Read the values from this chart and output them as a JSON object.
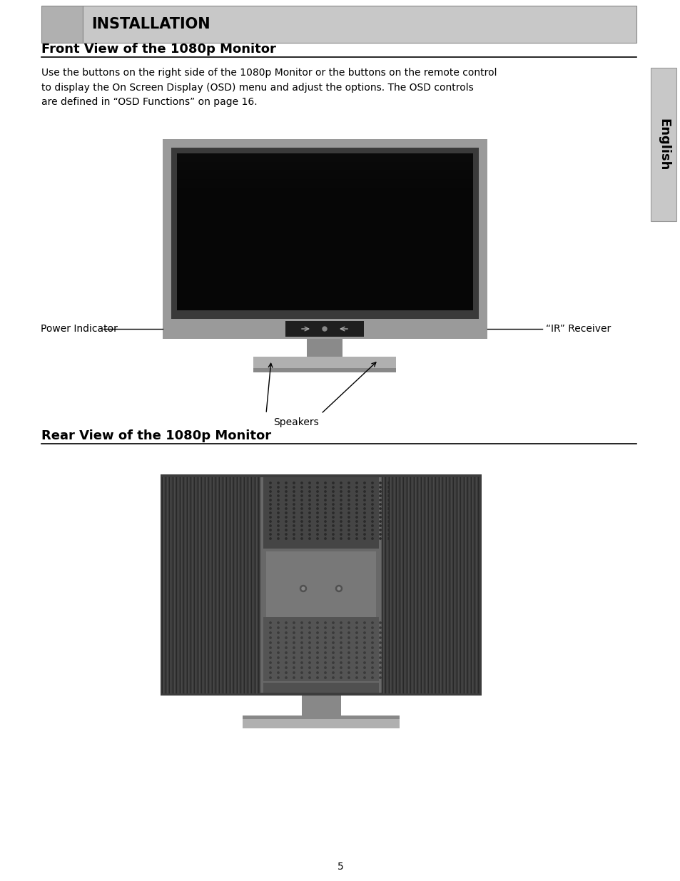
{
  "page_bg": "#ffffff",
  "header_bg": "#c8c8c8",
  "header_left_bg": "#b0b0b0",
  "header_text": "INSTALLATION",
  "header_text_color": "#000000",
  "sidebar_bg": "#c8c8c8",
  "sidebar_text": "English",
  "sidebar_text_color": "#000000",
  "section1_title": "Front View of the 1080p Monitor",
  "section1_body": "Use the buttons on the right side of the 1080p Monitor or the buttons on the remote control\nto display the On Screen Display (OSD) menu and adjust the options. The OSD controls\nare defined in “OSD Functions” on page 16.",
  "section2_title": "Rear View of the 1080p Monitor",
  "label_power": "Power Indicator",
  "label_ir": "“IR” Receiver",
  "label_speakers": "Speakers",
  "page_number": "5",
  "title_fontsize": 13,
  "body_fontsize": 10,
  "header_fontsize": 15,
  "sidebar_fontsize": 13
}
